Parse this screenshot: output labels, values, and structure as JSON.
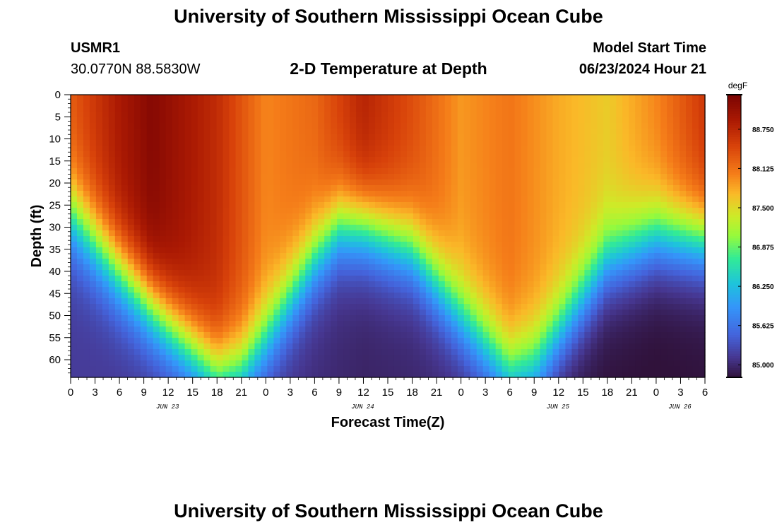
{
  "header": {
    "title": "University of Southern Mississippi Ocean Cube",
    "station_id": "USMR1",
    "coordinates": "30.0770N  88.5830W",
    "subtitle": "2-D Temperature at Depth",
    "model_start_label": "Model Start Time",
    "model_start_value": "06/23/2024 Hour 21"
  },
  "footer": {
    "title": "University of Southern Mississippi Ocean Cube"
  },
  "chart_data": {
    "type": "heatmap",
    "title": "2-D Temperature at Depth",
    "xlabel": "Forecast Time(Z)",
    "ylabel": "Depth (ft)",
    "x_tick_labels": [
      "0",
      "3",
      "6",
      "9",
      "12",
      "15",
      "18",
      "21",
      "0",
      "3",
      "6",
      "9",
      "12",
      "15",
      "18",
      "21",
      "0",
      "3",
      "6",
      "9",
      "12",
      "15",
      "18",
      "21",
      "0",
      "3",
      "6"
    ],
    "date_labels": [
      {
        "label": "JUN 23",
        "at_tick": 4
      },
      {
        "label": "JUN 24",
        "at_tick": 12
      },
      {
        "label": "JUN 25",
        "at_tick": 20
      },
      {
        "label": "JUN 26",
        "at_tick": 25
      }
    ],
    "xlim_hours": [
      0,
      78
    ],
    "ylim": [
      0,
      64
    ],
    "y_ticks": [
      0,
      5,
      10,
      15,
      20,
      25,
      30,
      35,
      40,
      45,
      50,
      55,
      60
    ],
    "colorbar": {
      "unit": "degF",
      "min": 84.8,
      "max": 89.3,
      "tick_values": [
        85.0,
        85.625,
        86.25,
        86.875,
        87.5,
        88.125,
        88.75
      ],
      "tick_labels": [
        "85.000",
        "85.625",
        "86.250",
        "86.875",
        "87.500",
        "88.125",
        "88.750"
      ]
    },
    "thermocline_depth_ft": {
      "hours": [
        0,
        6,
        12,
        18,
        21,
        24,
        30,
        33,
        36,
        42,
        48,
        54,
        57,
        60,
        66,
        72,
        78
      ],
      "values": [
        27,
        40,
        52,
        63,
        62,
        55,
        37,
        30,
        30,
        35,
        50,
        62,
        60,
        54,
        38,
        32,
        33
      ]
    },
    "surface_temp_degF": {
      "hours": [
        0,
        6,
        10,
        18,
        24,
        30,
        36,
        42,
        48,
        54,
        60,
        66,
        72,
        78
      ],
      "values": [
        88.3,
        88.9,
        89.2,
        88.7,
        88.0,
        88.2,
        88.8,
        88.4,
        87.9,
        88.1,
        87.8,
        87.6,
        88.0,
        88.6
      ]
    },
    "bottom_temp_degF": {
      "hours": [
        0,
        12,
        24,
        36,
        48,
        54,
        57,
        60,
        66,
        72,
        78
      ],
      "values": [
        85.15,
        85.1,
        85.1,
        84.95,
        85.0,
        85.2,
        85.3,
        84.85,
        84.8,
        84.78,
        84.8
      ]
    }
  }
}
